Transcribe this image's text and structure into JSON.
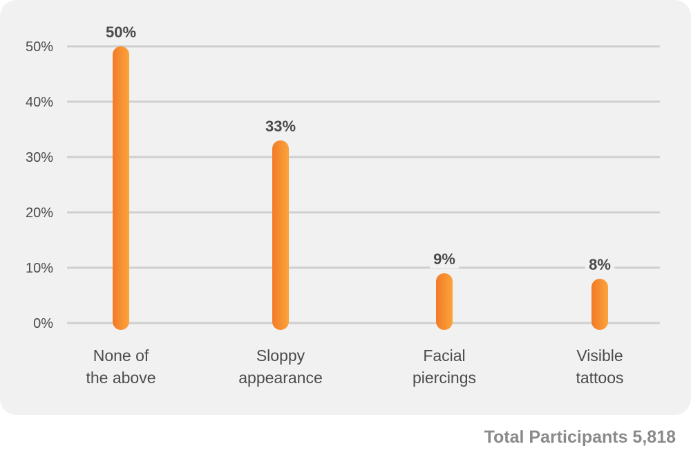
{
  "chart_data": {
    "type": "bar",
    "categories": [
      [
        "None of",
        "the above"
      ],
      [
        "Sloppy",
        "appearance"
      ],
      [
        "Facial",
        "piercings"
      ],
      [
        "Visible",
        "tattoos"
      ]
    ],
    "values": [
      50,
      33,
      9,
      8
    ],
    "value_labels": [
      "50%",
      "33%",
      "9%",
      "8%"
    ],
    "yticks": [
      "0%",
      "10%",
      "20%",
      "30%",
      "40%",
      "50%"
    ],
    "ylim": [
      0,
      50
    ],
    "grid": true,
    "bar_color": "#f7932e",
    "title": "",
    "xlabel": "",
    "ylabel": ""
  },
  "footer": {
    "note": "Total Participants 5,818"
  },
  "colors": {
    "panel_background": "#f1f1f1",
    "gridline": "#cfcfcf",
    "text": "#4a4a4a",
    "footer_text": "#8a8a8a"
  }
}
